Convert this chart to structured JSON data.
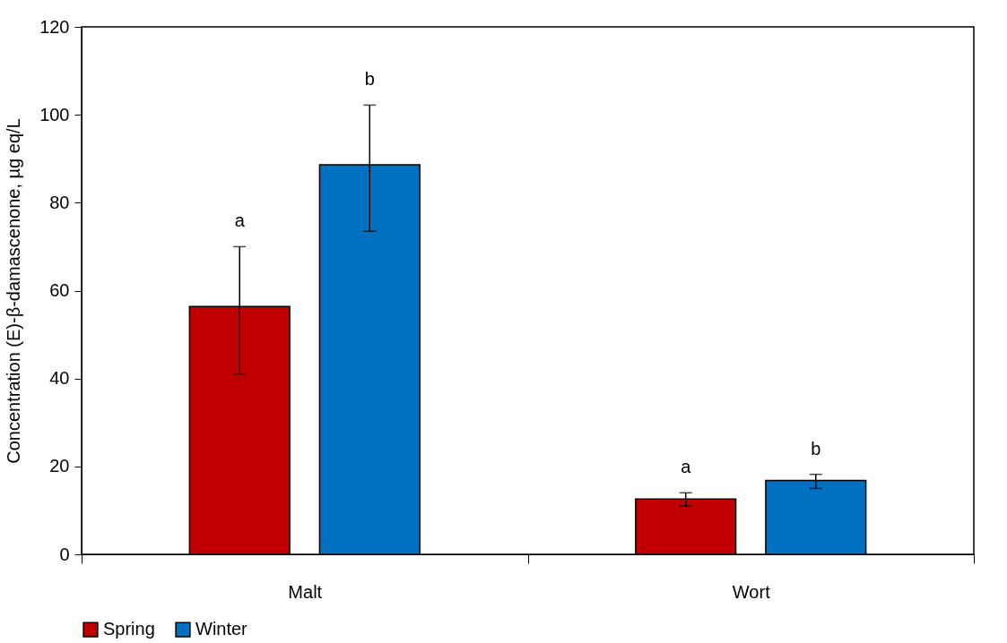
{
  "chart_data": {
    "type": "bar",
    "ylabel": "Concentration (E)-β-damascenone, µg eq/L",
    "categories": [
      "Malt",
      "Wort"
    ],
    "series": [
      {
        "name": "Spring",
        "color": "#c00000",
        "values": [
          56.4,
          12.6
        ],
        "errors": [
          [
            41,
            70
          ],
          [
            11,
            14
          ]
        ]
      },
      {
        "name": "Winter",
        "color": "#0070c0",
        "values": [
          88.6,
          16.8
        ],
        "errors": [
          [
            73.5,
            102.2
          ],
          [
            15,
            18.2
          ]
        ]
      }
    ],
    "ylim": [
      0,
      120
    ],
    "yticks": [
      0,
      20,
      40,
      60,
      80,
      100,
      120
    ],
    "grid": false,
    "legend": "bottom",
    "annotations": [
      "a",
      "b",
      "a",
      "b"
    ]
  }
}
